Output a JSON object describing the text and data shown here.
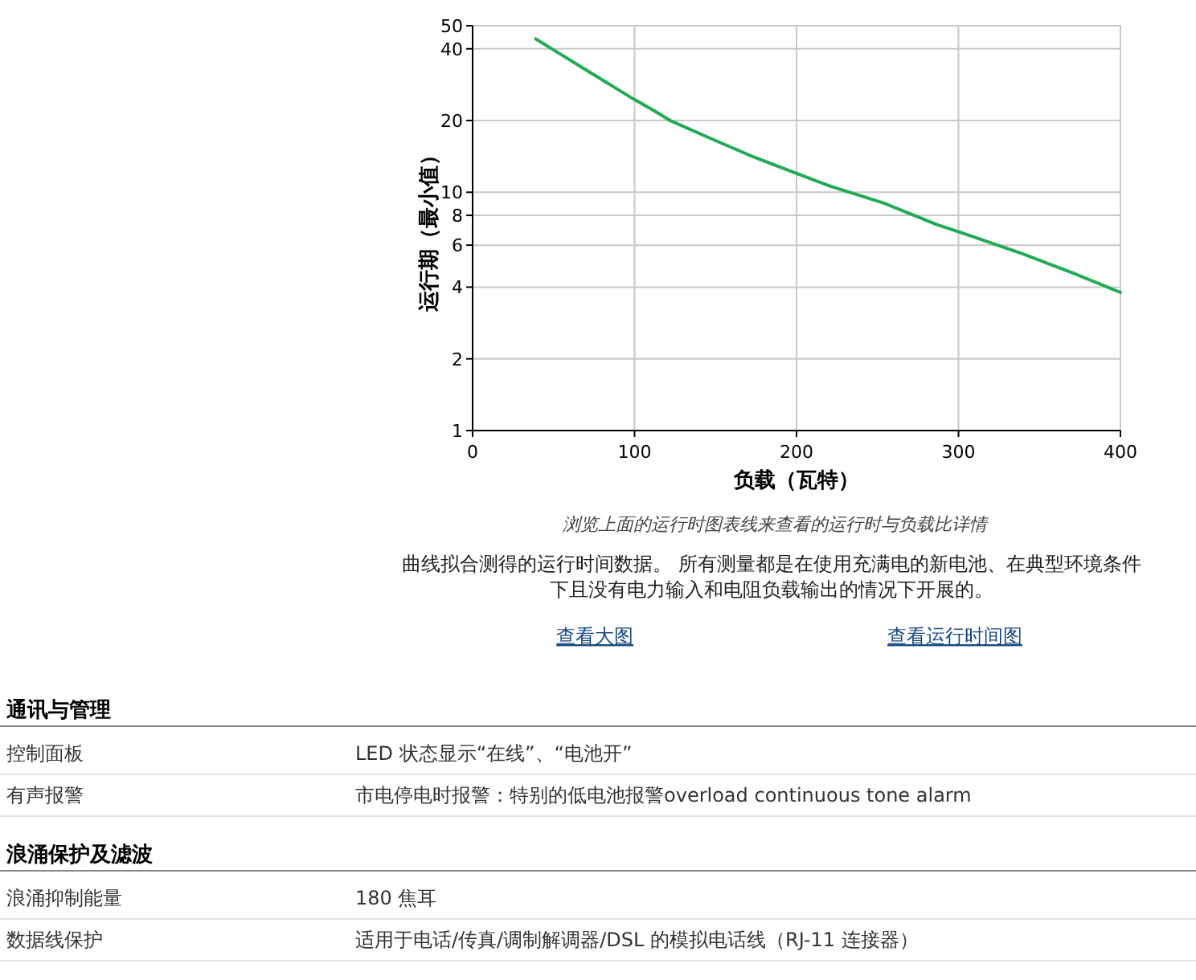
{
  "chart_data": [
    {
      "type": "line",
      "xlabel": "负载（瓦特）",
      "ylabel": "运行期（最小值）",
      "log": "y",
      "grid": true,
      "marker": "none",
      "line_style": "solid",
      "x": [
        39,
        55,
        72,
        99,
        112,
        122,
        148,
        171,
        200,
        221,
        254,
        287,
        301,
        337,
        370,
        400
      ],
      "series": [
        {
          "color": "#22aa55",
          "values": [
            44,
            37.7,
            32,
            24.7,
            22,
            20,
            16.7,
            14.3,
            12,
            10.6,
            9,
            7.3,
            6.8,
            5.6,
            4.6,
            3.8
          ]
        }
      ],
      "xlim": [
        0,
        400
      ],
      "xticks": [
        0,
        100,
        200,
        300,
        400
      ],
      "ylim": [
        1,
        50
      ],
      "yticks": [
        1,
        2,
        4,
        6,
        8,
        10,
        20,
        40,
        50
      ],
      "annotations": [
        "浏览上面的运行时图表线来查看的运行时与负载比详情",
        "曲线拟合测得的运行时间数据。 所有测量都是在使用充满电的新电池、在典型环境条件下且没有电力输入和电阻负载输出的情况下开展的。",
        "查看大图",
        "查看运行时间图"
      ]
    },
    {
      "type": "other",
      "title": "通讯与管理",
      "y_categories": [
        "控制面板",
        "有声报警"
      ],
      "y2_categories": [
        "LED 状态显示“在线”、“电池开”",
        "市电停电时报警：特别的低电池报警overload continuous tone alarm"
      ]
    },
    {
      "type": "other",
      "title": "浪涌保护及滤波",
      "y_categories": [
        "浪涌抑制能量",
        "数据线保护"
      ],
      "y2_categories": [
        "180 焦耳",
        "适用于电话/传真/调制解调器/DSL 的模拟电话线（RJ-11 连接器）"
      ]
    }
  ]
}
